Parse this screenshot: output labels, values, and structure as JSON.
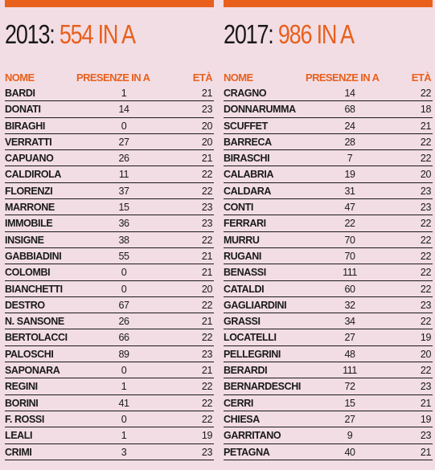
{
  "colors": {
    "accent": "#e8601c",
    "background": "#f2dde4",
    "text": "#1a1a1a"
  },
  "panels": [
    {
      "title_year": "2013:",
      "title_count": "554 IN A",
      "headers": {
        "name": "NOME",
        "presences": "PRESENZE IN A",
        "age": "ETÀ"
      },
      "rows": [
        {
          "name": "BARDI",
          "presences": "1",
          "age": "21"
        },
        {
          "name": "DONATI",
          "presences": "14",
          "age": "23"
        },
        {
          "name": "BIRAGHI",
          "presences": "0",
          "age": "20"
        },
        {
          "name": "VERRATTI",
          "presences": "27",
          "age": "20"
        },
        {
          "name": "CAPUANO",
          "presences": "26",
          "age": "21"
        },
        {
          "name": "CALDIROLA",
          "presences": "11",
          "age": "22"
        },
        {
          "name": "FLORENZI",
          "presences": "37",
          "age": "22"
        },
        {
          "name": "MARRONE",
          "presences": "15",
          "age": "23"
        },
        {
          "name": "IMMOBILE",
          "presences": "36",
          "age": "23"
        },
        {
          "name": "INSIGNE",
          "presences": "38",
          "age": "22"
        },
        {
          "name": "GABBIADINI",
          "presences": "55",
          "age": "21"
        },
        {
          "name": "COLOMBI",
          "presences": "0",
          "age": "21"
        },
        {
          "name": "BIANCHETTI",
          "presences": "0",
          "age": "20"
        },
        {
          "name": "DESTRO",
          "presences": "67",
          "age": "22"
        },
        {
          "name": "N. SANSONE",
          "presences": "26",
          "age": "21"
        },
        {
          "name": "BERTOLACCI",
          "presences": "66",
          "age": "22"
        },
        {
          "name": "PALOSCHI",
          "presences": "89",
          "age": "23"
        },
        {
          "name": "SAPONARA",
          "presences": "0",
          "age": "21"
        },
        {
          "name": "REGINI",
          "presences": "1",
          "age": "22"
        },
        {
          "name": "BORINI",
          "presences": "41",
          "age": "22"
        },
        {
          "name": "F. ROSSI",
          "presences": "0",
          "age": "22"
        },
        {
          "name": "LEALI",
          "presences": "1",
          "age": "19"
        },
        {
          "name": "CRIMI",
          "presences": "3",
          "age": "23"
        }
      ]
    },
    {
      "title_year": "2017:",
      "title_count": "986 IN A",
      "headers": {
        "name": "NOME",
        "presences": "PRESENZE IN A",
        "age": "ETÀ"
      },
      "rows": [
        {
          "name": "CRAGNO",
          "presences": "14",
          "age": "22"
        },
        {
          "name": "DONNARUMMA",
          "presences": "68",
          "age": "18"
        },
        {
          "name": "SCUFFET",
          "presences": "24",
          "age": "21"
        },
        {
          "name": "BARRECA",
          "presences": "28",
          "age": "22"
        },
        {
          "name": "BIRASCHI",
          "presences": "7",
          "age": "22"
        },
        {
          "name": "CALABRIA",
          "presences": "19",
          "age": "20"
        },
        {
          "name": "CALDARA",
          "presences": "31",
          "age": "23"
        },
        {
          "name": "CONTI",
          "presences": "47",
          "age": "23"
        },
        {
          "name": "FERRARI",
          "presences": "22",
          "age": "22"
        },
        {
          "name": "MURRU",
          "presences": "70",
          "age": "22"
        },
        {
          "name": "RUGANI",
          "presences": "70",
          "age": "22"
        },
        {
          "name": "BENASSI",
          "presences": "111",
          "age": "22"
        },
        {
          "name": "CATALDI",
          "presences": "60",
          "age": "22"
        },
        {
          "name": "GAGLIARDINI",
          "presences": "32",
          "age": "23"
        },
        {
          "name": "GRASSI",
          "presences": "34",
          "age": "22"
        },
        {
          "name": "LOCATELLI",
          "presences": "27",
          "age": "19"
        },
        {
          "name": "PELLEGRINI",
          "presences": "48",
          "age": "20"
        },
        {
          "name": "BERARDI",
          "presences": "111",
          "age": "22"
        },
        {
          "name": "BERNARDESCHI",
          "presences": "72",
          "age": "23"
        },
        {
          "name": "CERRI",
          "presences": "15",
          "age": "21"
        },
        {
          "name": "CHIESA",
          "presences": "27",
          "age": "19"
        },
        {
          "name": "GARRITANO",
          "presences": "9",
          "age": "23"
        },
        {
          "name": "PETAGNA",
          "presences": "40",
          "age": "21"
        }
      ]
    }
  ]
}
